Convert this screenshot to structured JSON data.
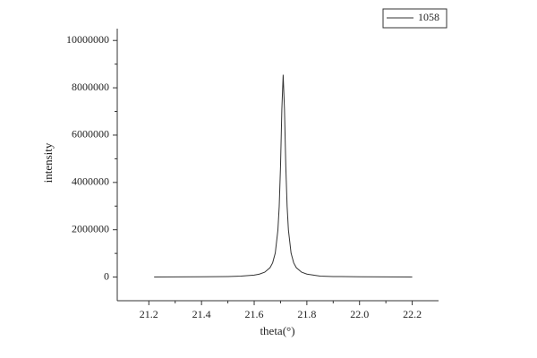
{
  "chart_data": {
    "type": "line",
    "x_label": "theta(°)",
    "y_label": "intensity",
    "x": [
      21.22,
      21.4,
      21.5,
      21.55,
      21.6,
      21.62,
      21.64,
      21.66,
      21.67,
      21.68,
      21.69,
      21.695,
      21.7,
      21.705,
      21.71,
      21.715,
      21.72,
      21.725,
      21.73,
      21.74,
      21.75,
      21.76,
      21.78,
      21.8,
      21.85,
      21.9,
      22.0,
      22.2
    ],
    "series": [
      {
        "name": "1058",
        "color": "#333333",
        "values": [
          4300,
          10800,
          23400,
          40300,
          84700,
          126000,
          206000,
          394000,
          601000,
          1013000,
          1985000,
          2989000,
          4682000,
          7085000,
          8550000,
          7085000,
          4682000,
          2989000,
          1985000,
          1013000,
          601000,
          394000,
          206000,
          126000,
          40300,
          23400,
          10800,
          4300
        ]
      }
    ],
    "xlim": [
      21.08,
      22.3
    ],
    "ylim": [
      -1000000,
      10500000
    ],
    "xticks": [
      21.2,
      21.4,
      21.6,
      21.8,
      {
        "value": 22.0,
        "label": "22.0"
      },
      22.2
    ],
    "yticks": [
      0,
      2000000,
      4000000,
      6000000,
      8000000,
      10000000
    ],
    "legend": "top-right"
  }
}
